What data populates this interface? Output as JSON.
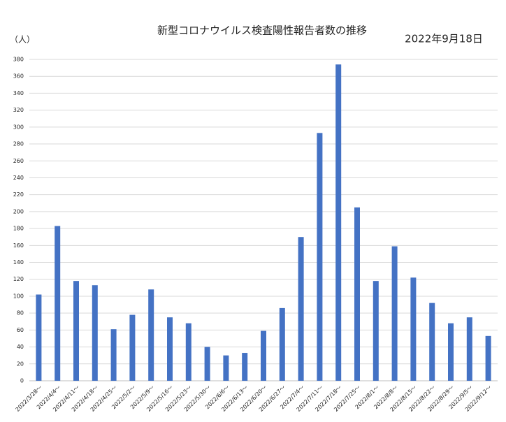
{
  "chart_data": {
    "type": "bar",
    "title": "新型コロナウイルス検査陽性報告者数の推移",
    "subtitle": "2022年9月18日",
    "y_label": "（人）",
    "categories": [
      "2022/3/28～",
      "2022/4/4～",
      "2022/4/11～",
      "2022/4/18～",
      "2022/4/25～",
      "2022/5/2～",
      "2022/5/9～",
      "2022/5/16～",
      "2022/5/23～",
      "2022/5/30～",
      "2022/6/6～",
      "2022/6/13～",
      "2022/6/20～",
      "2022/6/27～",
      "2022/7/4～",
      "2022/7/11～",
      "2022/7/18～",
      "2022/7/25～",
      "2022/8/1～",
      "2022/8/8～",
      "2022/8/15～",
      "2022/8/22～",
      "2022/8/29～",
      "2022/9/5～",
      "2022/9/12～"
    ],
    "values": [
      102,
      183,
      118,
      113,
      61,
      78,
      108,
      75,
      68,
      40,
      30,
      33,
      59,
      86,
      170,
      293,
      374,
      205,
      118,
      159,
      122,
      92,
      68,
      75,
      53
    ],
    "color": "#4472c4",
    "ylim": [
      0,
      380
    ],
    "yticks": [
      0,
      20,
      40,
      60,
      80,
      100,
      120,
      140,
      160,
      180,
      200,
      220,
      240,
      260,
      280,
      300,
      320,
      340,
      360,
      380
    ],
    "grid": true
  }
}
